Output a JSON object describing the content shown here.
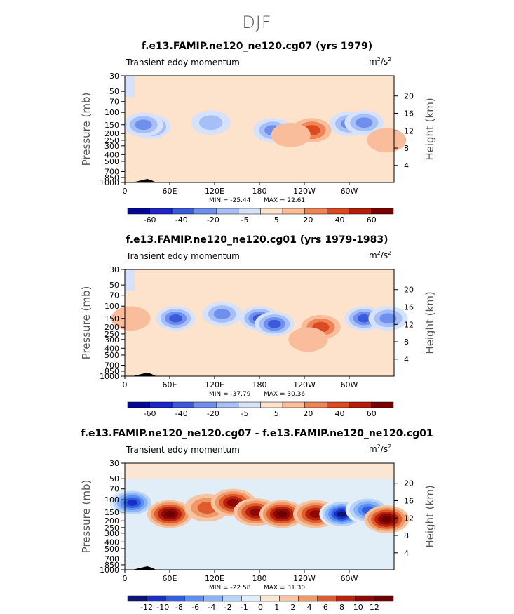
{
  "title": "DJF",
  "y_axis_label": "Pressure (mb)",
  "y2_axis_label": "Height (km)",
  "pressure_ticks": [
    "30",
    "50",
    "70",
    "100",
    "150",
    "200",
    "250",
    "300",
    "400",
    "500",
    "700",
    "850",
    "1000"
  ],
  "height_ticks": [
    "4",
    "8",
    "12",
    "16",
    "20"
  ],
  "lon_ticks": [
    "0",
    "60E",
    "120E",
    "180",
    "120W",
    "60W"
  ],
  "colors": {
    "abs": [
      "#050896",
      "#1d24c8",
      "#3b5bdc",
      "#6f8fee",
      "#a6bff6",
      "#d6e2fb",
      "#fde2cc",
      "#f9bd9b",
      "#ef8457",
      "#dc4a22",
      "#b31d0a",
      "#7a0000"
    ],
    "diff": [
      "#0f1173",
      "#1a2fc2",
      "#2f5fe0",
      "#5b8ef2",
      "#8ab4f8",
      "#b8d3f5",
      "#e2eef7",
      "#fbe6d4",
      "#f6c4a2",
      "#ee9966",
      "#dd5b2c",
      "#b8220c",
      "#8d0808",
      "#6e0000"
    ]
  },
  "chart_data": [
    {
      "type": "heatmap",
      "title": "f.e13.FAMIP.ne120_ne120.cg07 (yrs 1979)",
      "subtitle": "Transient eddy momentum",
      "units": "m2/s2",
      "min_label": "MIN = -25.44",
      "max_label": "MAX = 22.61",
      "colorbar_labels": [
        "-60",
        "-40",
        "-20",
        "-5",
        "5",
        "20",
        "40",
        "60"
      ],
      "features": [
        {
          "lon": 35,
          "p": 160,
          "value": -25.44
        },
        {
          "lon": 25,
          "p": 150,
          "value": -15
        },
        {
          "lon": 115,
          "p": 140,
          "value": -8
        },
        {
          "lon": 198,
          "p": 180,
          "value": -12
        },
        {
          "lon": 250,
          "p": 180,
          "value": 22.61
        },
        {
          "lon": 222,
          "p": 210,
          "value": 8
        },
        {
          "lon": 300,
          "p": 145,
          "value": -20
        },
        {
          "lon": 320,
          "p": 140,
          "value": -12
        },
        {
          "lon": 350,
          "p": 250,
          "value": 6
        }
      ]
    },
    {
      "type": "heatmap",
      "title": "f.e13.FAMIP.ne120_ne120.cg01 (yrs 1979-1983)",
      "subtitle": "Transient eddy momentum",
      "units": "m2/s2",
      "min_label": "MIN = -37.79",
      "max_label": "MAX = 30.36",
      "colorbar_labels": [
        "-60",
        "-40",
        "-20",
        "-5",
        "5",
        "20",
        "40",
        "60"
      ],
      "features": [
        {
          "lon": 68,
          "p": 150,
          "value": -30
        },
        {
          "lon": 130,
          "p": 130,
          "value": -12
        },
        {
          "lon": 180,
          "p": 150,
          "value": -37.79
        },
        {
          "lon": 200,
          "p": 180,
          "value": -25
        },
        {
          "lon": 262,
          "p": 200,
          "value": 30.36
        },
        {
          "lon": 320,
          "p": 150,
          "value": -25
        },
        {
          "lon": 352,
          "p": 150,
          "value": -15
        },
        {
          "lon": 8,
          "p": 150,
          "value": 6
        },
        {
          "lon": 245,
          "p": 300,
          "value": 5
        }
      ]
    },
    {
      "type": "heatmap",
      "title": "f.e13.FAMIP.ne120_ne120.cg07 - f.e13.FAMIP.ne120_ne120.cg01",
      "subtitle": "Transient eddy momentum",
      "units": "m2/s2",
      "min_label": "MIN = -22.58",
      "max_label": "MAX = 31.30",
      "colorbar_labels": [
        "-12",
        "-10",
        "-8",
        "-6",
        "-4",
        "-2",
        "-1",
        "0",
        "1",
        "2",
        "4",
        "6",
        "8",
        "10",
        "12"
      ],
      "features": [
        {
          "lon": 10,
          "p": 110,
          "value": -12
        },
        {
          "lon": 60,
          "p": 160,
          "value": 12
        },
        {
          "lon": 110,
          "p": 130,
          "value": 4
        },
        {
          "lon": 145,
          "p": 110,
          "value": 8
        },
        {
          "lon": 175,
          "p": 150,
          "value": 10
        },
        {
          "lon": 210,
          "p": 160,
          "value": 31.3
        },
        {
          "lon": 255,
          "p": 160,
          "value": 10
        },
        {
          "lon": 290,
          "p": 160,
          "value": -22.58
        },
        {
          "lon": 325,
          "p": 140,
          "value": -8
        },
        {
          "lon": 350,
          "p": 190,
          "value": 12
        }
      ]
    }
  ]
}
